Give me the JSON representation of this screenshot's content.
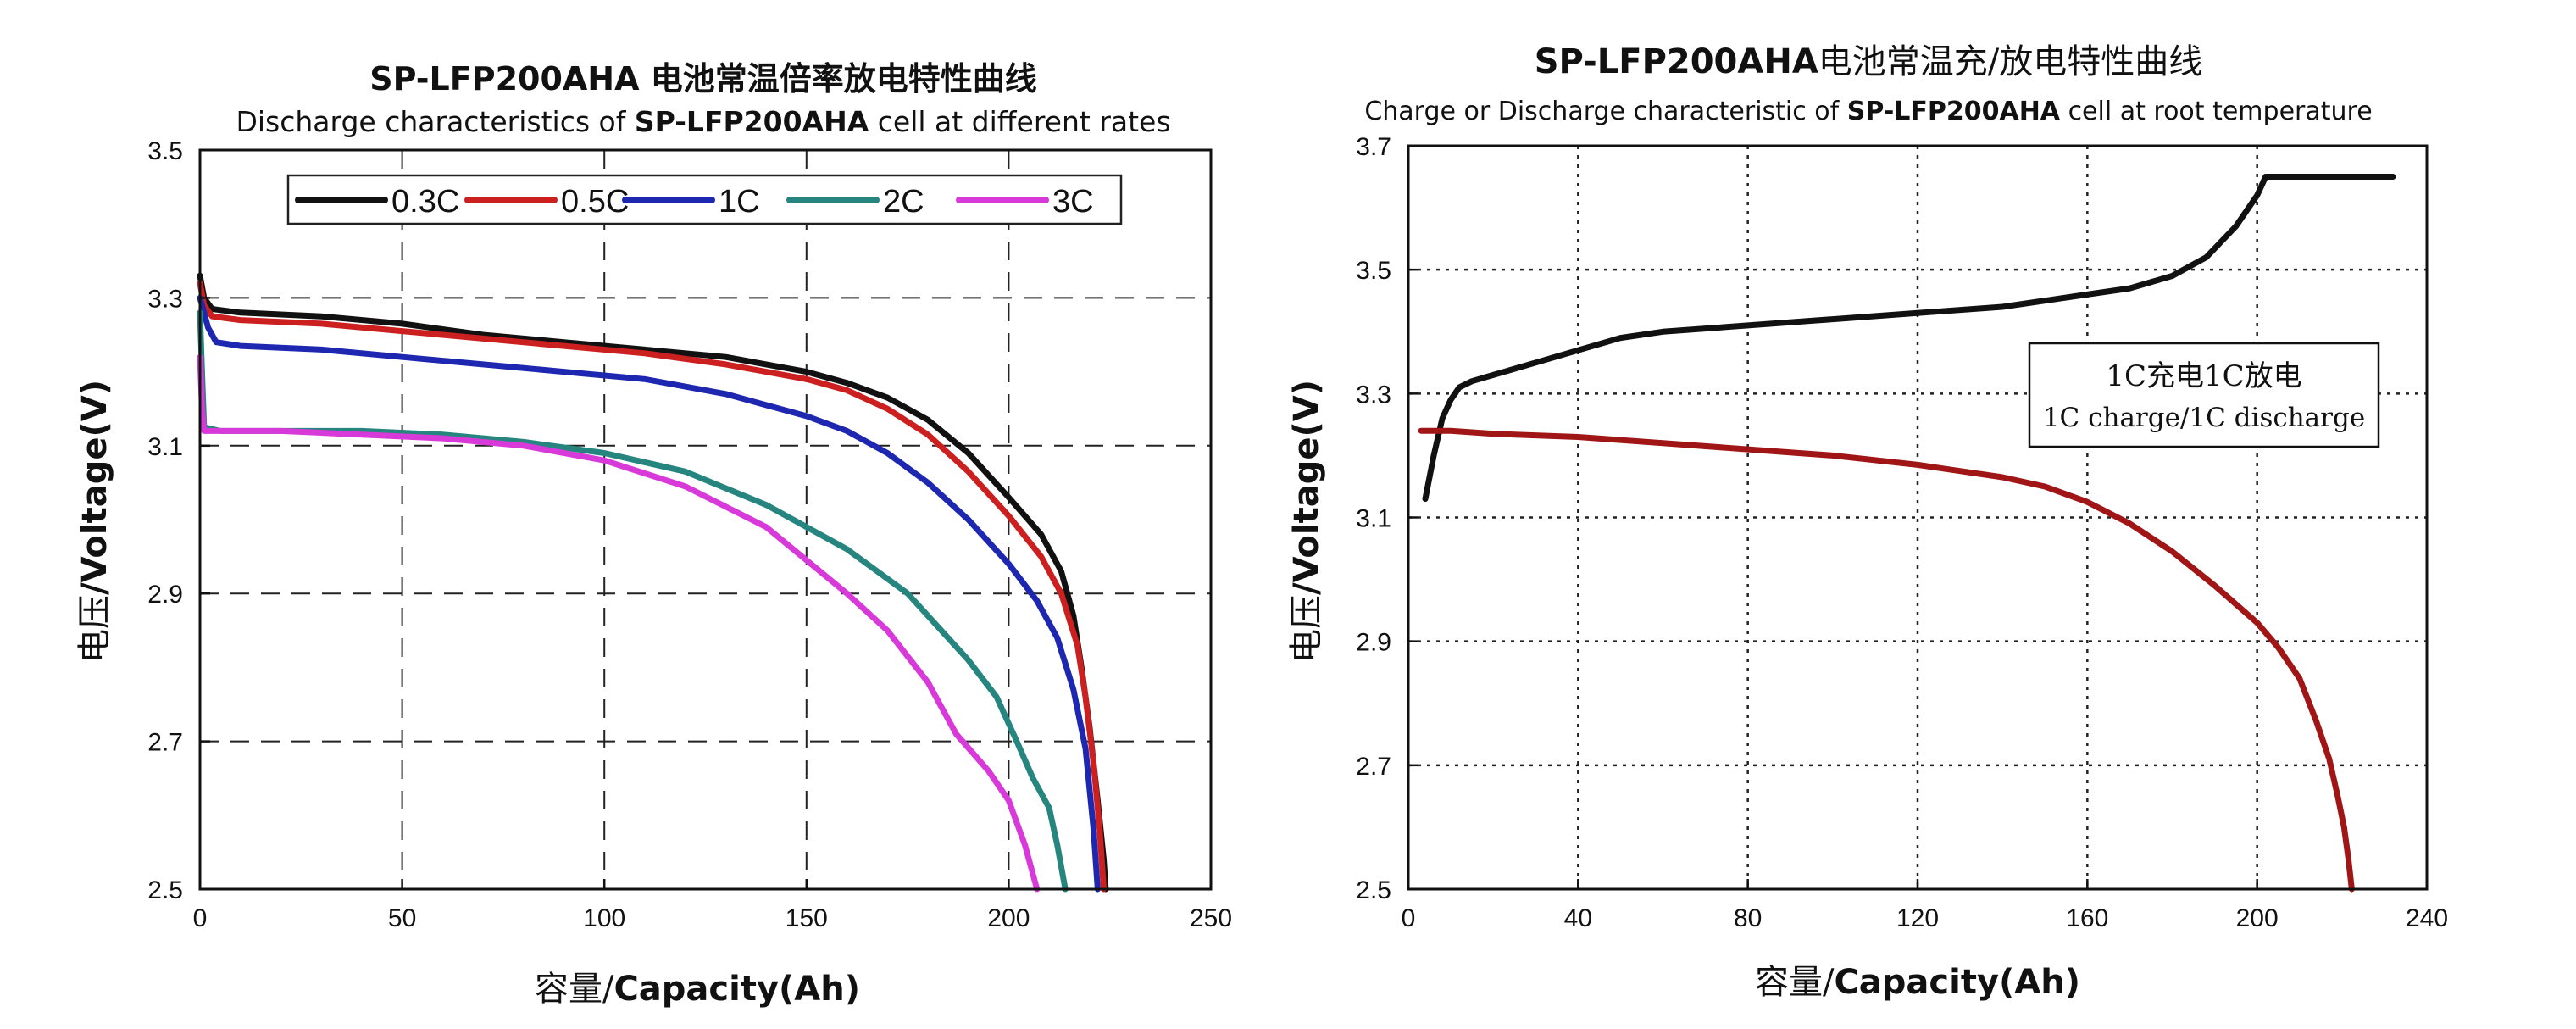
{
  "chart_data": [
    {
      "type": "line",
      "title": "SP-LFP200AHA 电池常温倍率放电特性曲线",
      "subtitle_prefix": "Discharge characteristics of ",
      "subtitle_bold": "SP-LFP200AHA",
      "subtitle_suffix": " cell at different rates",
      "xlabel_cn": "容量/",
      "xlabel_en": "Capacity(Ah)",
      "ylabel_cn": "电压",
      "ylabel_en": "/Voltage(V)",
      "xlim": [
        0,
        250
      ],
      "ylim": [
        2.5,
        3.5
      ],
      "xticks": [
        "0",
        "50",
        "100",
        "150",
        "200",
        "250"
      ],
      "yticks": [
        "2.5",
        "2.7",
        "2.9",
        "3.1",
        "3.3",
        "3.5"
      ],
      "grid": "dashed",
      "legend_position": "top",
      "series": [
        {
          "name": "0.3C",
          "color": "#111111",
          "x": [
            0,
            1,
            3,
            10,
            30,
            50,
            70,
            90,
            110,
            130,
            150,
            160,
            170,
            180,
            190,
            200,
            208,
            213,
            216,
            218,
            220,
            222,
            223.5,
            224
          ],
          "y": [
            3.33,
            3.3,
            3.285,
            3.28,
            3.275,
            3.265,
            3.25,
            3.24,
            3.23,
            3.22,
            3.2,
            3.185,
            3.165,
            3.135,
            3.09,
            3.03,
            2.98,
            2.93,
            2.87,
            2.8,
            2.72,
            2.62,
            2.54,
            2.5
          ]
        },
        {
          "name": "0.5C",
          "color": "#cc1f1f",
          "x": [
            0,
            1,
            3,
            10,
            30,
            50,
            70,
            90,
            110,
            130,
            150,
            160,
            170,
            180,
            190,
            200,
            208,
            213,
            217,
            219,
            221,
            222.5,
            223.5
          ],
          "y": [
            3.32,
            3.29,
            3.275,
            3.27,
            3.265,
            3.255,
            3.245,
            3.235,
            3.225,
            3.21,
            3.19,
            3.175,
            3.15,
            3.115,
            3.065,
            3.005,
            2.95,
            2.9,
            2.83,
            2.76,
            2.67,
            2.58,
            2.5
          ]
        },
        {
          "name": "1C",
          "color": "#1e27b0",
          "x": [
            0,
            1,
            2,
            4,
            10,
            30,
            50,
            70,
            90,
            110,
            130,
            150,
            160,
            170,
            180,
            190,
            200,
            207,
            212,
            216,
            219,
            221,
            222
          ],
          "y": [
            3.3,
            3.28,
            3.26,
            3.24,
            3.235,
            3.23,
            3.22,
            3.21,
            3.2,
            3.19,
            3.17,
            3.14,
            3.12,
            3.09,
            3.05,
            3.0,
            2.94,
            2.89,
            2.84,
            2.77,
            2.69,
            2.58,
            2.5
          ]
        },
        {
          "name": "2C",
          "color": "#26867f",
          "x": [
            0,
            0.5,
            1,
            5,
            20,
            40,
            60,
            80,
            100,
            120,
            140,
            160,
            175,
            190,
            197,
            202,
            206,
            210,
            212,
            214
          ],
          "y": [
            3.28,
            3.2,
            3.125,
            3.12,
            3.12,
            3.12,
            3.115,
            3.105,
            3.09,
            3.065,
            3.02,
            2.96,
            2.9,
            2.81,
            2.76,
            2.7,
            2.65,
            2.61,
            2.56,
            2.5
          ]
        },
        {
          "name": "3C",
          "color": "#d83ad9",
          "x": [
            0,
            0.5,
            1,
            5,
            20,
            40,
            60,
            80,
            100,
            120,
            140,
            160,
            170,
            180,
            187,
            195,
            200,
            204,
            207
          ],
          "y": [
            3.22,
            3.15,
            3.12,
            3.12,
            3.12,
            3.115,
            3.11,
            3.1,
            3.08,
            3.045,
            2.99,
            2.9,
            2.85,
            2.78,
            2.71,
            2.66,
            2.62,
            2.56,
            2.5
          ]
        }
      ]
    },
    {
      "type": "line",
      "title_bold": "SP-LFP200AHA",
      "title_cn": "电池常温充/放电特性曲线",
      "subtitle_prefix": "Charge or Discharge characteristic of ",
      "subtitle_bold": "SP-LFP200AHA",
      "subtitle_suffix": " cell at root temperature",
      "xlabel_cn": "容量/",
      "xlabel_en": "Capacity(Ah)",
      "ylabel_cn": "电压",
      "ylabel_en": "/Voltage(V)",
      "xlim": [
        0,
        240
      ],
      "ylim": [
        2.5,
        3.7
      ],
      "xticks": [
        "0",
        "40",
        "80",
        "120",
        "160",
        "200",
        "240"
      ],
      "yticks": [
        "2.5",
        "2.7",
        "2.9",
        "3.1",
        "3.3",
        "3.5",
        "3.7"
      ],
      "grid": "dotted",
      "annotation_line1": "1C充电1C放电",
      "annotation_line2": "1C charge/1C discharge",
      "series": [
        {
          "name": "charge",
          "color": "#111111",
          "x": [
            4,
            6,
            8,
            10,
            12,
            15,
            20,
            30,
            40,
            50,
            60,
            80,
            100,
            120,
            140,
            160,
            170,
            180,
            188,
            195,
            200,
            202,
            210,
            220,
            232
          ],
          "y": [
            3.13,
            3.2,
            3.26,
            3.29,
            3.31,
            3.32,
            3.33,
            3.35,
            3.37,
            3.39,
            3.4,
            3.41,
            3.42,
            3.43,
            3.44,
            3.46,
            3.47,
            3.49,
            3.52,
            3.57,
            3.62,
            3.65,
            3.65,
            3.65,
            3.65
          ]
        },
        {
          "name": "discharge",
          "color": "#a01616",
          "x": [
            3,
            10,
            20,
            40,
            60,
            80,
            100,
            120,
            130,
            140,
            150,
            160,
            170,
            180,
            190,
            200,
            205,
            210,
            214,
            217,
            219,
            220.5,
            221.5,
            222.3
          ],
          "y": [
            3.24,
            3.24,
            3.235,
            3.23,
            3.22,
            3.21,
            3.2,
            3.185,
            3.175,
            3.165,
            3.15,
            3.125,
            3.09,
            3.045,
            2.99,
            2.93,
            2.89,
            2.84,
            2.77,
            2.71,
            2.65,
            2.6,
            2.55,
            2.5
          ]
        }
      ]
    }
  ]
}
